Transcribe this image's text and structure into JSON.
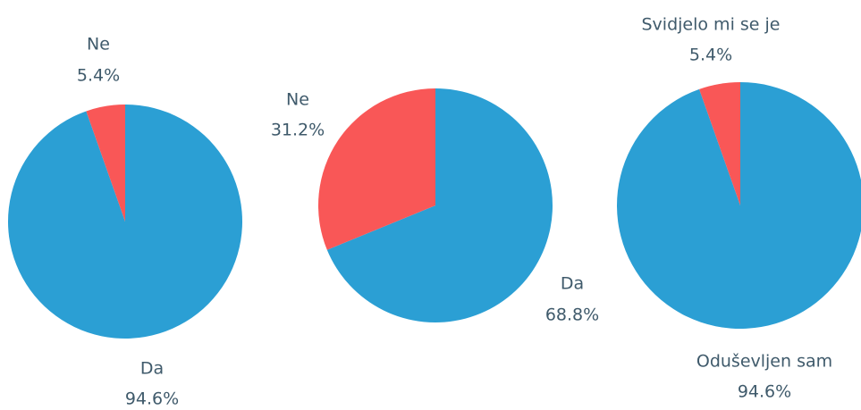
{
  "chart_data": [
    {
      "type": "pie",
      "categories": [
        "Da",
        "Ne"
      ],
      "values": [
        94.6,
        5.4
      ],
      "value_labels": [
        "94.6%",
        "5.4%"
      ],
      "colors": [
        "#2b9fd4",
        "#f95757"
      ]
    },
    {
      "type": "pie",
      "categories": [
        "Da",
        "Ne"
      ],
      "values": [
        68.8,
        31.2
      ],
      "value_labels": [
        "68.8%",
        "31.2%"
      ],
      "colors": [
        "#2b9fd4",
        "#f95757"
      ]
    },
    {
      "type": "pie",
      "categories": [
        "Oduševljen sam",
        "Svidjelo mi se je"
      ],
      "values": [
        94.6,
        5.4
      ],
      "value_labels": [
        "94.6%",
        "5.4%"
      ],
      "colors": [
        "#2b9fd4",
        "#f95757"
      ]
    }
  ]
}
